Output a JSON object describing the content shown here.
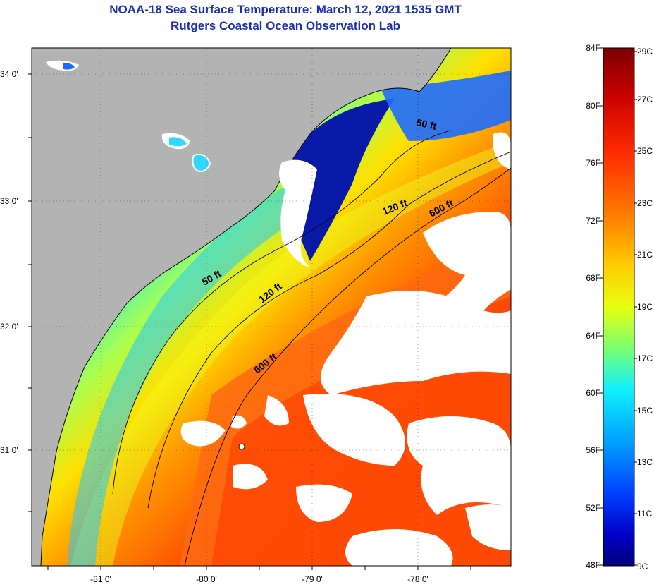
{
  "title": {
    "line1": "NOAA-18 Sea Surface Temperature:  March 12, 2021 1535 GMT",
    "line2": "Rutgers Coastal Ocean Observation Lab"
  },
  "map": {
    "latitude_labels": [
      "34 0'",
      "33 0'",
      "32 0'",
      "31 0'"
    ],
    "longitude_labels": [
      "-81 0'",
      "-80 0'",
      "-79 0'",
      "-78 0'"
    ],
    "contour_labels": [
      "50 ft",
      "120 ft",
      "600 ft",
      "50 ft",
      "120 ft",
      "600 ft"
    ]
  },
  "colorbar": {
    "fahrenheit_labels": [
      "84F",
      "80F",
      "76F",
      "72F",
      "68F",
      "64F",
      "60F",
      "56F",
      "52F",
      "48F"
    ],
    "celsius_labels": [
      "29C",
      "27C",
      "25C",
      "23C",
      "21C",
      "19C",
      "17C",
      "15C",
      "13C",
      "11C",
      "9C"
    ],
    "colors": [
      "#7a0000",
      "#c80000",
      "#ff2a00",
      "#ff7a00",
      "#ffcc00",
      "#e8ff10",
      "#7cff70",
      "#10f0ff",
      "#00a0ff",
      "#0040ff",
      "#0000c8",
      "#00007a"
    ]
  },
  "colors": {
    "land": "#b3b3b3",
    "cloud": "#ffffff",
    "title": "#1b2fb0"
  }
}
